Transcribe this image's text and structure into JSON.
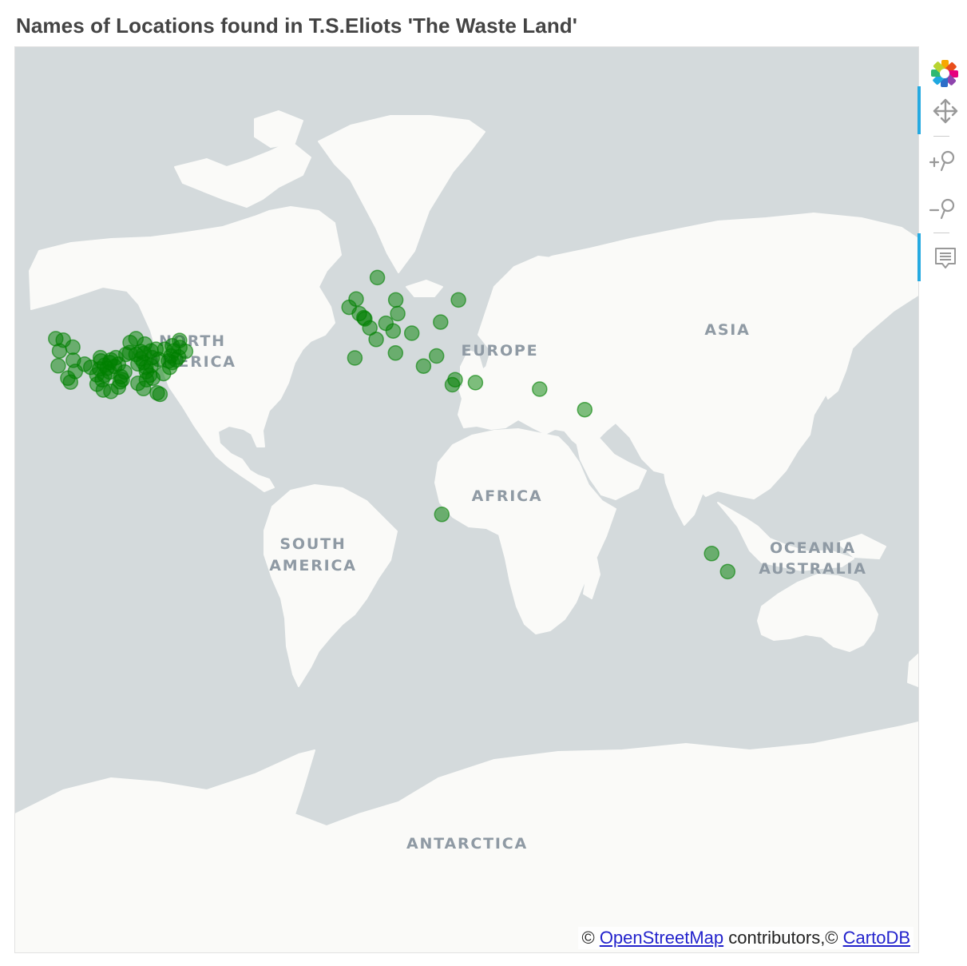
{
  "title": "Names of Locations found in T.S.Eliots 'The Waste Land'",
  "map": {
    "tile_provider": "CartoDB Positron",
    "region_labels": [
      {
        "text": "NORTH",
        "id": "north-1"
      },
      {
        "text": "AMERICA",
        "id": "north-2"
      },
      {
        "text": "EUROPE",
        "id": "europe"
      },
      {
        "text": "ASIA",
        "id": "asia"
      },
      {
        "text": "AFRICA",
        "id": "africa"
      },
      {
        "text": "SOUTH",
        "id": "south-1"
      },
      {
        "text": "AMERICA",
        "id": "south-2"
      },
      {
        "text": "OCEANIA",
        "id": "oceania"
      },
      {
        "text": "AUSTRALIA",
        "id": "australia"
      },
      {
        "text": "ANTARCTICA",
        "id": "antarctica"
      }
    ],
    "colors": {
      "water": "#d4dadc",
      "land": "#fafaf8",
      "borders": "#f0d6da",
      "marker": "#008000"
    },
    "attribution": {
      "prefix": "©",
      "osm_link": "OpenStreetMap",
      "middle": "contributors,©",
      "carto_link": "CartoDB"
    }
  },
  "markers": {
    "color": "#008000",
    "fill_alpha": 0.5,
    "points": [
      {
        "lat": 46.0,
        "lon": -123.0
      },
      {
        "lat": 45.6,
        "lon": -120.0
      },
      {
        "lat": 42.5,
        "lon": -121.5
      },
      {
        "lat": 38.0,
        "lon": -122.0
      },
      {
        "lat": 34.0,
        "lon": -118.2
      },
      {
        "lat": 32.7,
        "lon": -117.1
      },
      {
        "lat": 39.7,
        "lon": -116.0
      },
      {
        "lat": 36.2,
        "lon": -115.2
      },
      {
        "lat": 38.5,
        "lon": -111.5
      },
      {
        "lat": 37.5,
        "lon": -109.0
      },
      {
        "lat": 37.0,
        "lon": -105.5
      },
      {
        "lat": 39.5,
        "lon": -105.0
      },
      {
        "lat": 38.2,
        "lon": -103.5
      },
      {
        "lat": 37.2,
        "lon": -102.5
      },
      {
        "lat": 36.0,
        "lon": -101.5
      },
      {
        "lat": 35.0,
        "lon": -103.5
      },
      {
        "lat": 33.5,
        "lon": -104.5
      },
      {
        "lat": 32.0,
        "lon": -106.5
      },
      {
        "lat": 30.0,
        "lon": -104.0
      },
      {
        "lat": 29.5,
        "lon": -101.0
      },
      {
        "lat": 31.0,
        "lon": -98.0
      },
      {
        "lat": 33.5,
        "lon": -96.5
      },
      {
        "lat": 36.0,
        "lon": -95.5
      },
      {
        "lat": 38.5,
        "lon": -98.0
      },
      {
        "lat": 39.0,
        "lon": -101.5
      },
      {
        "lat": 40.5,
        "lon": -99.0
      },
      {
        "lat": 41.5,
        "lon": -95.0
      },
      {
        "lat": 42.0,
        "lon": -93.5
      },
      {
        "lat": 41.5,
        "lon": -91.0
      },
      {
        "lat": 40.2,
        "lon": -89.0
      },
      {
        "lat": 41.8,
        "lon": -87.7
      },
      {
        "lat": 42.5,
        "lon": -85.0
      },
      {
        "lat": 40.5,
        "lon": -84.5
      },
      {
        "lat": 39.0,
        "lon": -88.0
      },
      {
        "lat": 38.6,
        "lon": -90.2
      },
      {
        "lat": 37.5,
        "lon": -87.0
      },
      {
        "lat": 36.2,
        "lon": -86.8
      },
      {
        "lat": 35.0,
        "lon": -85.5
      },
      {
        "lat": 34.0,
        "lon": -84.3
      },
      {
        "lat": 33.5,
        "lon": -86.8
      },
      {
        "lat": 32.3,
        "lon": -90.2
      },
      {
        "lat": 30.5,
        "lon": -88.0
      },
      {
        "lat": 29.0,
        "lon": -82.5
      },
      {
        "lat": 28.5,
        "lon": -81.4
      },
      {
        "lat": 35.5,
        "lon": -80.0
      },
      {
        "lat": 37.5,
        "lon": -77.5
      },
      {
        "lat": 39.5,
        "lon": -78.0
      },
      {
        "lat": 40.0,
        "lon": -82.0
      },
      {
        "lat": 39.0,
        "lon": -76.5
      },
      {
        "lat": 40.7,
        "lon": -74.0
      },
      {
        "lat": 42.5,
        "lon": -76.0
      },
      {
        "lat": 43.0,
        "lon": -79.5
      },
      {
        "lat": 44.0,
        "lon": -76.5
      },
      {
        "lat": 43.5,
        "lon": -73.5
      },
      {
        "lat": 45.5,
        "lon": -73.6
      },
      {
        "lat": 42.4,
        "lon": -71.2
      },
      {
        "lat": 39.8,
        "lon": -75.0
      },
      {
        "lat": 41.0,
        "lon": -77.0
      },
      {
        "lat": 43.0,
        "lon": -83.0
      },
      {
        "lat": 44.5,
        "lon": -87.5
      },
      {
        "lat": 46.0,
        "lon": -91.0
      },
      {
        "lat": 44.9,
        "lon": -93.3
      },
      {
        "lat": 42.3,
        "lon": -89.0
      },
      {
        "lat": 38.0,
        "lon": -85.0
      },
      {
        "lat": 40.5,
        "lon": -105.2
      },
      {
        "lat": 35.1,
        "lon": -106.6
      },
      {
        "lat": 43.6,
        "lon": -116.2
      },
      {
        "lat": 39.8,
        "lon": -101.0
      },
      {
        "lat": 37.8,
        "lon": -99.5
      },
      {
        "lat": 34.5,
        "lon": -97.0
      },
      {
        "lat": 32.8,
        "lon": -97.3
      },
      {
        "lat": 60.4,
        "lon": 5.3
      },
      {
        "lat": 55.9,
        "lon": -3.2
      },
      {
        "lat": 54.0,
        "lon": -6.0
      },
      {
        "lat": 52.5,
        "lon": -1.9
      },
      {
        "lat": 51.5,
        "lon": -0.1
      },
      {
        "lat": 51.2,
        "lon": 0.3
      },
      {
        "lat": 48.9,
        "lon": 2.3
      },
      {
        "lat": 45.8,
        "lon": 4.8
      },
      {
        "lat": 52.5,
        "lon": 13.4
      },
      {
        "lat": 50.1,
        "lon": 8.7
      },
      {
        "lat": 48.1,
        "lon": 11.6
      },
      {
        "lat": 47.5,
        "lon": 19.0
      },
      {
        "lat": 55.7,
        "lon": 12.6
      },
      {
        "lat": 50.4,
        "lon": 30.5
      },
      {
        "lat": 40.4,
        "lon": -3.7
      },
      {
        "lat": 41.9,
        "lon": 12.5
      },
      {
        "lat": 37.9,
        "lon": 23.7
      },
      {
        "lat": 41.0,
        "lon": 28.9
      },
      {
        "lat": 31.8,
        "lon": 35.2
      },
      {
        "lat": 32.5,
        "lon": 44.4
      },
      {
        "lat": 55.7,
        "lon": 37.6
      },
      {
        "lat": 33.5,
        "lon": 36.3
      },
      {
        "lat": 30.3,
        "lon": 70.0
      },
      {
        "lat": 23.0,
        "lon": 88.0
      },
      {
        "lat": -17.8,
        "lon": 31.0
      },
      {
        "lat": -31.9,
        "lon": 138.6
      },
      {
        "lat": -37.8,
        "lon": 145.0
      }
    ]
  },
  "toolbar": {
    "tools": [
      {
        "name": "bokeh-logo",
        "icon": "bokeh-logo-icon"
      },
      {
        "name": "pan",
        "icon": "pan-icon",
        "active": true
      },
      {
        "name": "zoom-in",
        "icon": "zoom-in-icon"
      },
      {
        "name": "zoom-out",
        "icon": "zoom-out-icon"
      },
      {
        "name": "hover",
        "icon": "hover-icon",
        "active": true
      }
    ]
  }
}
